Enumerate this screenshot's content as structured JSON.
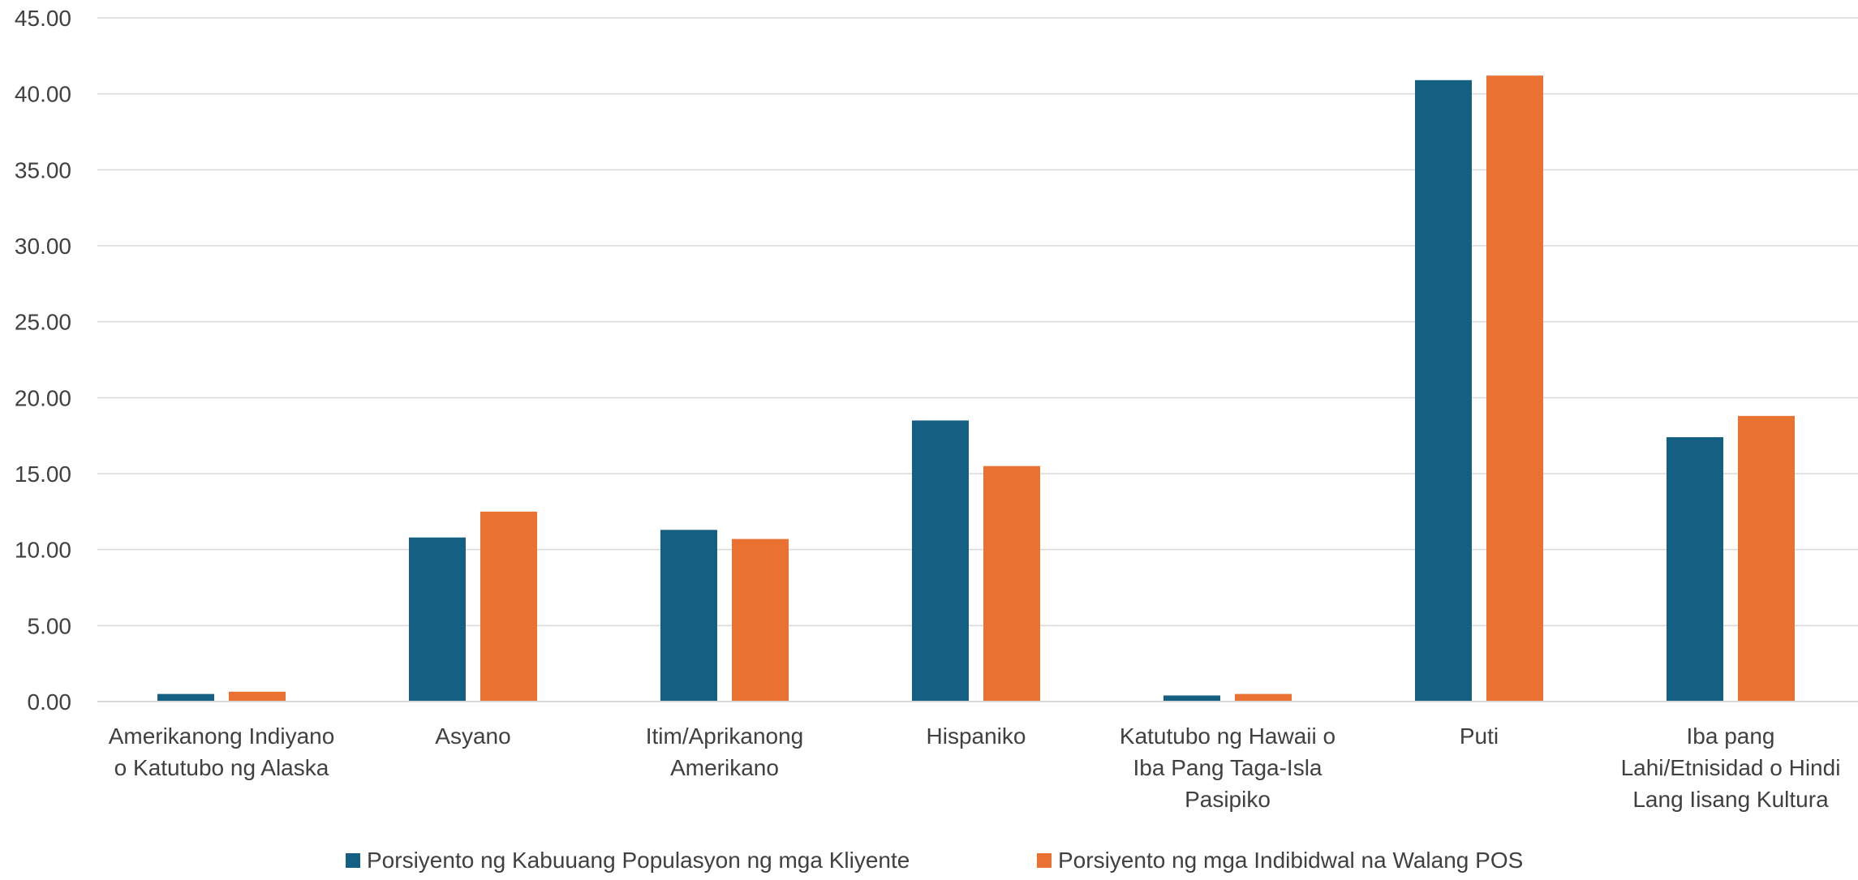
{
  "chart_data": {
    "type": "bar",
    "categories": [
      [
        "Amerikanong Indiyano",
        "o Katutubo ng Alaska"
      ],
      [
        "Asyano"
      ],
      [
        "Itim/Aprikanong",
        "Amerikano"
      ],
      [
        "Hispaniko"
      ],
      [
        "Katutubo ng Hawaii o",
        "Iba Pang Taga-Isla",
        "Pasipiko"
      ],
      [
        "Puti"
      ],
      [
        "Iba pang",
        "Lahi/Etnisidad o Hindi",
        "Lang Iisang Kultura"
      ]
    ],
    "series": [
      {
        "name": "Porsiyento ng Kabuuang Populasyon ng mga Kliyente",
        "color": "#156082",
        "values": [
          0.5,
          10.8,
          11.3,
          18.5,
          0.4,
          40.9,
          17.4
        ]
      },
      {
        "name": "Porsiyento ng mga Indibidwal na Walang POS",
        "color": "#E97132",
        "values": [
          0.65,
          12.5,
          10.7,
          15.5,
          0.5,
          41.2,
          18.8
        ]
      }
    ],
    "ylim": [
      0,
      45
    ],
    "yticks": [
      "0.00",
      "5.00",
      "10.00",
      "15.00",
      "20.00",
      "25.00",
      "30.00",
      "35.00",
      "40.00",
      "45.00"
    ],
    "ytick_step": 5,
    "grid": true,
    "legend_position": "bottom",
    "title": "",
    "xlabel": "",
    "ylabel": ""
  }
}
